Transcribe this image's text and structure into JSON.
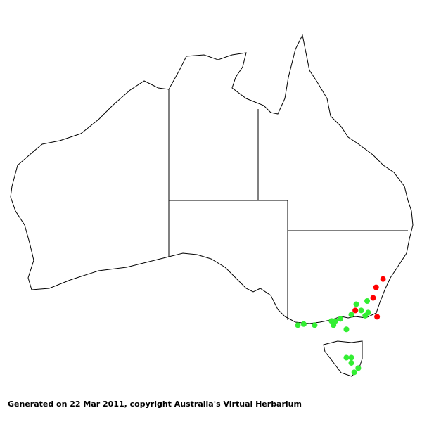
{
  "caption": "Generated on 22 Mar 2011, copyright Australia's Virtual Herbarium",
  "colors": {
    "background": "#ffffff",
    "outline": "#000000",
    "group_red": "#ff0000",
    "group_green": "#33ee33"
  },
  "map": {
    "region": "Australia",
    "extent_lon": [
      113,
      153.6
    ],
    "extent_lat": [
      -43.6,
      -10.7
    ],
    "records_red": [
      {
        "lon": 150.6,
        "lat": -34.3
      },
      {
        "lon": 149.9,
        "lat": -35.1
      },
      {
        "lon": 149.6,
        "lat": -36.1
      },
      {
        "lon": 147.8,
        "lat": -37.3
      },
      {
        "lon": 150.0,
        "lat": -37.9
      }
    ],
    "records_green": [
      {
        "lon": 147.9,
        "lat": -36.7
      },
      {
        "lon": 149.0,
        "lat": -36.4
      },
      {
        "lon": 148.4,
        "lat": -37.3
      },
      {
        "lon": 149.1,
        "lat": -37.5
      },
      {
        "lon": 148.8,
        "lat": -37.8
      },
      {
        "lon": 147.4,
        "lat": -37.7
      },
      {
        "lon": 146.3,
        "lat": -38.1
      },
      {
        "lon": 145.8,
        "lat": -38.3
      },
      {
        "lon": 145.4,
        "lat": -38.3
      },
      {
        "lon": 145.6,
        "lat": -38.7
      },
      {
        "lon": 146.9,
        "lat": -39.1
      },
      {
        "lon": 143.7,
        "lat": -38.7
      },
      {
        "lon": 142.6,
        "lat": -38.6
      },
      {
        "lon": 142.0,
        "lat": -38.7
      },
      {
        "lon": 147.4,
        "lat": -41.8
      },
      {
        "lon": 146.9,
        "lat": -41.8
      },
      {
        "lon": 147.4,
        "lat": -42.3
      },
      {
        "lon": 148.1,
        "lat": -42.8
      },
      {
        "lon": 147.7,
        "lat": -43.2
      }
    ]
  }
}
